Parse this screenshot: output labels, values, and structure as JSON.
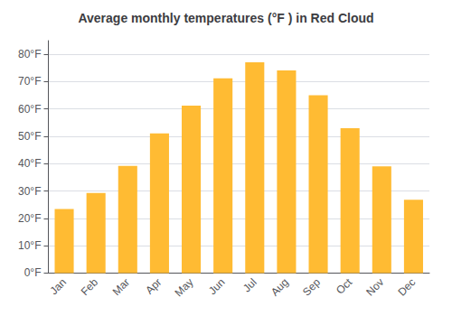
{
  "chart_data": {
    "type": "bar",
    "title": "Average monthly temperatures (°F ) in Red Cloud",
    "categories": [
      "Jan",
      "Feb",
      "Mar",
      "Apr",
      "May",
      "Jun",
      "Jul",
      "Aug",
      "Sep",
      "Oct",
      "Nov",
      "Dec"
    ],
    "values": [
      23.4,
      29.3,
      39.2,
      51.1,
      61.2,
      71.2,
      77.1,
      74.1,
      65.0,
      53.0,
      39.0,
      26.8
    ],
    "color": "#FFBB33",
    "ylim": [
      0,
      85
    ],
    "yticks": [
      {
        "value": 0,
        "label": "0°F"
      },
      {
        "value": 10,
        "label": "10°F"
      },
      {
        "value": 20,
        "label": "20°F"
      },
      {
        "value": 30,
        "label": "30°F"
      },
      {
        "value": 40,
        "label": "40°F"
      },
      {
        "value": 50,
        "label": "50°F"
      },
      {
        "value": 60,
        "label": "60°F"
      },
      {
        "value": 70,
        "label": "70°F"
      },
      {
        "value": 80,
        "label": "80°F"
      }
    ],
    "grid": true
  }
}
